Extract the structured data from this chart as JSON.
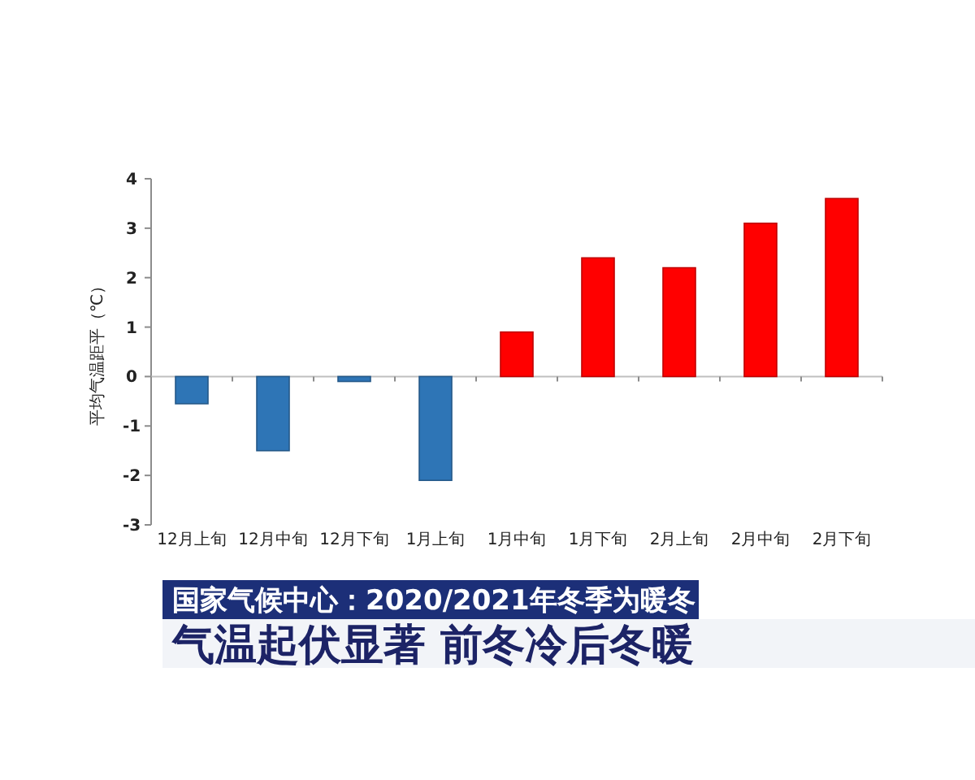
{
  "chart_data": {
    "type": "bar",
    "title": "国家气候中心：2020/2021年冬季为暖冬",
    "subtitle": "气温起伏显著 前冬冷后冬暖",
    "ylabel": "平均气温距平（℃）",
    "categories": [
      "12月上旬",
      "12月中旬",
      "12月下旬",
      "1月上旬",
      "1月中旬",
      "1月下旬",
      "2月上旬",
      "2月中旬",
      "2月下旬"
    ],
    "values": [
      -0.55,
      -1.5,
      -0.1,
      -2.1,
      0.9,
      2.4,
      2.2,
      3.1,
      3.6
    ],
    "colors": [
      "#2e75b6",
      "#2e75b6",
      "#2e75b6",
      "#2e75b6",
      "#ff0000",
      "#ff0000",
      "#ff0000",
      "#ff0000",
      "#ff0000"
    ],
    "ylim": [
      -3,
      4
    ],
    "yticks": [
      -3,
      -2,
      -1,
      0,
      1,
      2,
      3,
      4
    ]
  }
}
